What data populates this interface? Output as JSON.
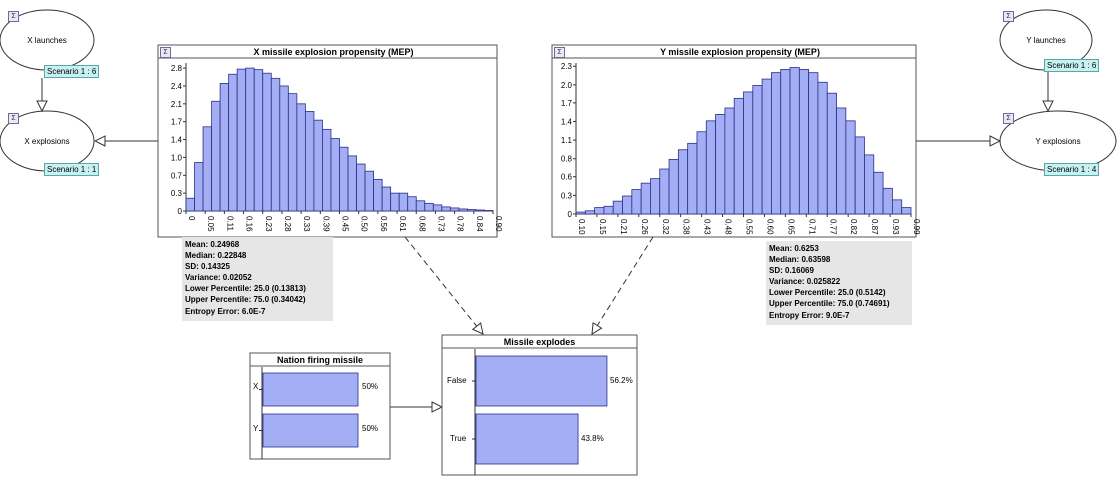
{
  "nodes": {
    "x_launches": {
      "label": "X launches",
      "scenario": "Scenario 1 : 6"
    },
    "x_explosions": {
      "label": "X explosions",
      "scenario": "Scenario 1 : 1"
    },
    "y_launches": {
      "label": "Y launches",
      "scenario": "Scenario 1 : 6"
    },
    "y_explosions": {
      "label": "Y explosions",
      "scenario": "Scenario 1 : 4"
    }
  },
  "sigma_glyph": "Σ",
  "stats_x": {
    "mean": "Mean: 0.24968",
    "median": "Median: 0.22848",
    "sd": "SD: 0.14325",
    "variance": "Variance: 0.02052",
    "lower": "Lower Percentile: 25.0 (0.13813)",
    "upper": "Upper Percentile: 75.0 (0.34042)",
    "entropy": "Entropy Error: 6.0E-7"
  },
  "stats_y": {
    "mean": "Mean: 0.6253",
    "median": "Median: 0.63598",
    "sd": "SD: 0.16069",
    "variance": "Variance: 0.025822",
    "lower": "Lower Percentile: 25.0 (0.5142)",
    "upper": "Upper Percentile: 75.0 (0.74691)",
    "entropy": "Entropy Error: 9.0E-7"
  },
  "nation": {
    "title": "Nation firing missile",
    "labels": [
      "X",
      "Y"
    ],
    "values": [
      50,
      50
    ],
    "value_labels": [
      "50%",
      "50%"
    ]
  },
  "explodes": {
    "title": "Missile explodes",
    "labels": [
      "False",
      "True"
    ],
    "values": [
      56.2,
      43.8
    ],
    "value_labels": [
      "56.2%",
      "43.8%"
    ]
  },
  "colors": {
    "bar_fill": "#a3aef5",
    "bar_stroke": "#2b2e8a",
    "line": "#333333",
    "scenario_bg": "#c8f1f2"
  },
  "chart_data": [
    {
      "type": "bar",
      "title": "X missile explosion propensity (MEP)",
      "ylim": [
        0,
        2.9
      ],
      "yticks": [
        "0",
        "0.3",
        "0.7",
        "1.0",
        "1.4",
        "1.7",
        "2.1",
        "2.4",
        "2.8"
      ],
      "ytick_values": [
        0,
        0.35,
        0.7,
        1.05,
        1.4,
        1.75,
        2.1,
        2.45,
        2.8
      ],
      "xticks": [
        "0",
        "0.05",
        "0.11",
        "0.16",
        "0.23",
        "0.28",
        "0.33",
        "0.39",
        "0.45",
        "0.50",
        "0.56",
        "0.61",
        "0.68",
        "0.73",
        "0.78",
        "0.84",
        "0.90"
      ],
      "values": [
        0.25,
        0.95,
        1.65,
        2.15,
        2.5,
        2.68,
        2.78,
        2.8,
        2.77,
        2.7,
        2.6,
        2.45,
        2.3,
        2.1,
        1.95,
        1.78,
        1.6,
        1.42,
        1.25,
        1.08,
        0.92,
        0.78,
        0.62,
        0.47,
        0.35,
        0.35,
        0.28,
        0.2,
        0.15,
        0.12,
        0.08,
        0.06,
        0.04,
        0.03,
        0.02,
        0.01
      ]
    },
    {
      "type": "bar",
      "title": "Y missile explosion propensity (MEP)",
      "ylim": [
        0,
        2.35
      ],
      "yticks": [
        "0",
        "0.3",
        "0.6",
        "0.8",
        "1.1",
        "1.4",
        "1.7",
        "2.0",
        "2.3"
      ],
      "ytick_values": [
        0,
        0.29,
        0.58,
        0.86,
        1.15,
        1.44,
        1.73,
        2.01,
        2.3
      ],
      "xticks": [
        "0.10",
        "0.15",
        "0.21",
        "0.26",
        "0.32",
        "0.38",
        "0.43",
        "0.48",
        "0.55",
        "0.60",
        "0.65",
        "0.71",
        "0.77",
        "0.82",
        "0.87",
        "0.93",
        "0.99"
      ],
      "values": [
        0.03,
        0.05,
        0.1,
        0.12,
        0.2,
        0.28,
        0.38,
        0.48,
        0.55,
        0.7,
        0.85,
        1.0,
        1.1,
        1.28,
        1.45,
        1.55,
        1.65,
        1.8,
        1.9,
        2.0,
        2.1,
        2.2,
        2.25,
        2.28,
        2.25,
        2.2,
        2.05,
        1.88,
        1.65,
        1.45,
        1.2,
        0.92,
        0.65,
        0.4,
        0.22,
        0.1
      ]
    }
  ]
}
